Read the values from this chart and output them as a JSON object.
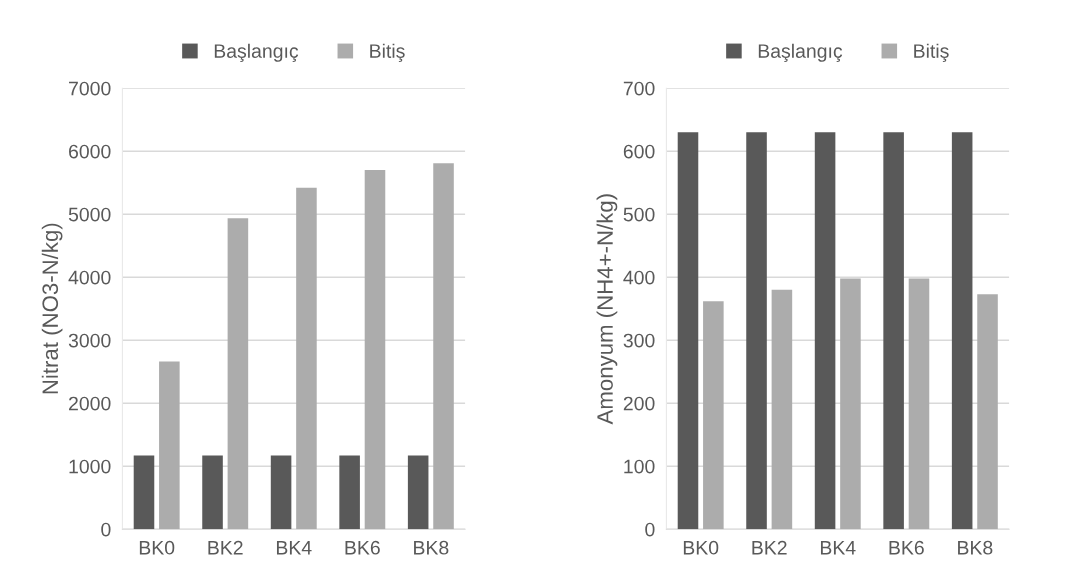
{
  "chart_data": [
    {
      "type": "bar",
      "categories": [
        "BK0",
        "BK2",
        "BK4",
        "BK6",
        "BK8"
      ],
      "ylabel": "Nitrat (NO3-N/kg)",
      "ylim": [
        0,
        7000
      ],
      "yticks": [
        0,
        1000,
        2000,
        3000,
        4000,
        5000,
        6000,
        7000
      ],
      "grid": "y",
      "legend": "top",
      "series": [
        {
          "name": "Başlangıç",
          "color": "#595959",
          "values": [
            1170,
            1170,
            1170,
            1170,
            1170
          ]
        },
        {
          "name": "Bitiş",
          "color": "#acacac",
          "values": [
            2660,
            4935,
            5420,
            5700,
            5810
          ]
        }
      ]
    },
    {
      "type": "bar",
      "categories": [
        "BK0",
        "BK2",
        "BK4",
        "BK6",
        "BK8"
      ],
      "ylabel": "Amonyum (NH4+-N/kg)",
      "ylim": [
        0,
        700
      ],
      "yticks": [
        0,
        100,
        200,
        300,
        400,
        500,
        600,
        700
      ],
      "grid": "y",
      "legend": "top",
      "series": [
        {
          "name": "Başlangıç",
          "color": "#595959",
          "values": [
            630,
            630,
            630,
            630,
            630
          ]
        },
        {
          "name": "Bitiş",
          "color": "#acacac",
          "values": [
            362,
            380,
            398,
            398,
            373
          ]
        }
      ]
    }
  ]
}
